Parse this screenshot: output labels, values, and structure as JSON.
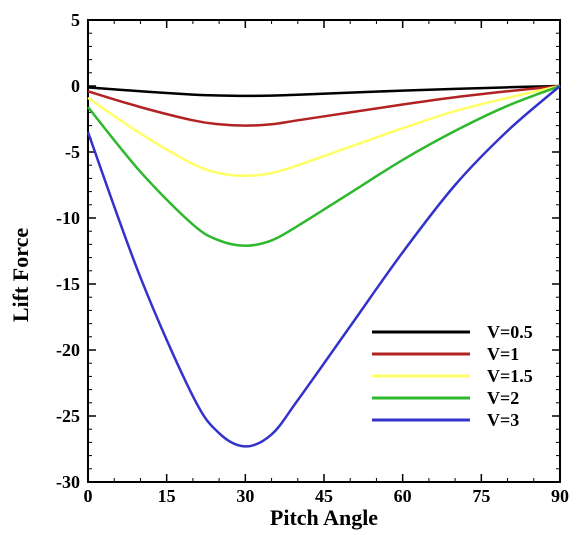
{
  "chart_data": {
    "type": "line",
    "title": "",
    "xlabel": "Pitch Angle",
    "ylabel": "Lift Force",
    "xlim": [
      0,
      90
    ],
    "ylim": [
      -30,
      5
    ],
    "xticks": [
      0,
      15,
      30,
      45,
      60,
      75,
      90
    ],
    "yticks": [
      5,
      0,
      -5,
      -10,
      -15,
      -20,
      -25,
      -30
    ],
    "xtick_labels": [
      "0",
      "15",
      "30",
      "45",
      "60",
      "75",
      "90"
    ],
    "ytick_labels": [
      "5",
      "0",
      "-5",
      "-10",
      "-15",
      "-20",
      "-25",
      "-30"
    ],
    "grid": false,
    "legend_position": "bottom-right",
    "x": [
      0,
      10,
      20,
      25,
      30,
      35,
      40,
      50,
      60,
      70,
      80,
      90
    ],
    "series": [
      {
        "name": "V=0.5",
        "color": "#000000",
        "values": [
          -0.1,
          -0.4,
          -0.65,
          -0.72,
          -0.75,
          -0.73,
          -0.66,
          -0.5,
          -0.35,
          -0.22,
          -0.1,
          0
        ]
      },
      {
        "name": "V=1",
        "color": "#b22222",
        "values": [
          -0.4,
          -1.6,
          -2.6,
          -2.9,
          -3.0,
          -2.9,
          -2.6,
          -2.0,
          -1.4,
          -0.85,
          -0.4,
          0
        ]
      },
      {
        "name": "V=1.5",
        "color": "#ffff66",
        "values": [
          -0.9,
          -3.6,
          -5.9,
          -6.6,
          -6.8,
          -6.6,
          -6.0,
          -4.6,
          -3.2,
          -1.9,
          -0.9,
          0
        ]
      },
      {
        "name": "V=2",
        "color": "#2db82d",
        "values": [
          -1.6,
          -6.5,
          -10.5,
          -11.7,
          -12.1,
          -11.7,
          -10.6,
          -8.1,
          -5.6,
          -3.4,
          -1.5,
          0
        ]
      },
      {
        "name": "V=3",
        "color": "#3333cc",
        "values": [
          -3.5,
          -14.5,
          -23.5,
          -26.3,
          -27.3,
          -26.4,
          -23.8,
          -18.2,
          -12.6,
          -7.5,
          -3.4,
          0
        ]
      }
    ]
  }
}
